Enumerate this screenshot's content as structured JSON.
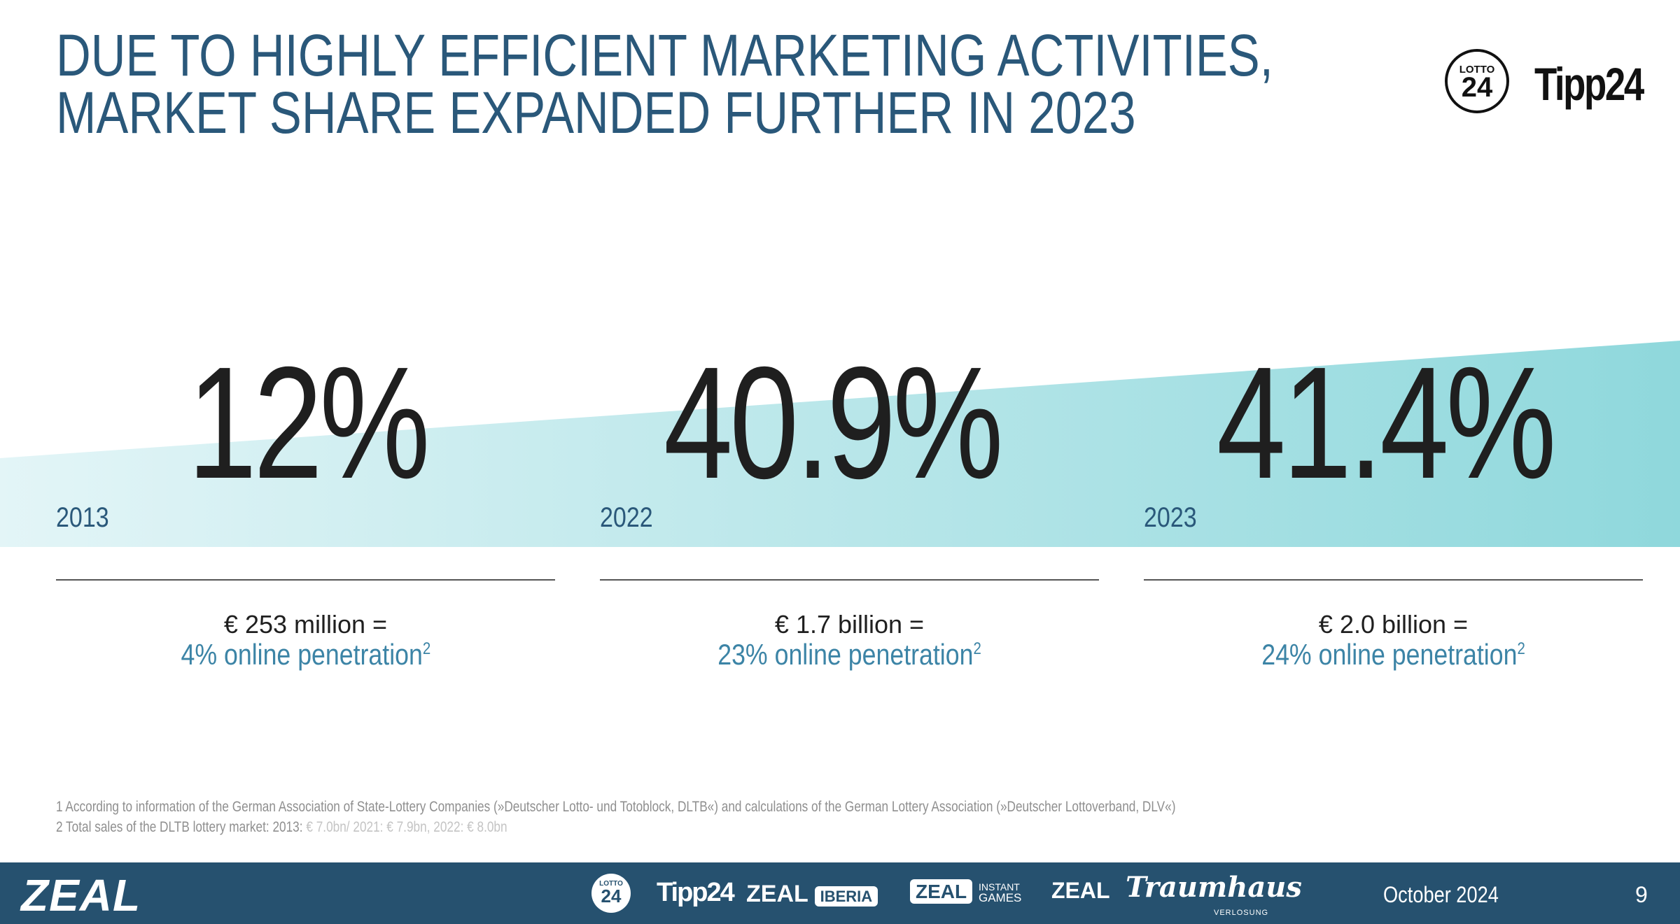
{
  "title": {
    "line1": "DUE TO HIGHLY EFFICIENT MARKETING ACTIVITIES,",
    "line2": "MARKET SHARE EXPANDED FURTHER IN 2023"
  },
  "header_logos": {
    "lotto_small": "LOTTO",
    "lotto_big": "24",
    "tipp": "Tipp24"
  },
  "stats": [
    {
      "year": "2013",
      "share": "12%",
      "amount": "€ 253 million =",
      "penetration": "4% online penetration",
      "sup": "2"
    },
    {
      "year": "2022",
      "share": "40.9%",
      "amount": "€ 1.7 billion =",
      "penetration": "23% online penetration",
      "sup": "2"
    },
    {
      "year": "2023",
      "share": "41.4%",
      "amount": "€ 2.0 billion =",
      "penetration": "24% online penetration",
      "sup": "2"
    }
  ],
  "footnotes": {
    "note1": "1 According to information of the German Association of State-Lottery Companies (»Deutscher Lotto- und Totoblock, DLTB«) and calculations of the German Lottery Association (»Deutscher Lottoverband, DLV«)",
    "note2_prefix": "2 Total sales of the DLTB lottery market: 2013:",
    "note2_values": "€ 7.0bn/ 2021: € 7.9bn, 2022: € 8.0bn"
  },
  "footer": {
    "brand": "ZEAL",
    "lotto_small": "LOTTO",
    "lotto_big": "24",
    "tipp": "Tipp24",
    "zeal_iberia_a": "ZEAL",
    "zeal_iberia_b": "IBERIA",
    "zeal_instant_a": "ZEAL",
    "zeal_instant_b1": "INSTANT",
    "zeal_instant_b2": "GAMES",
    "zeal_plain": "ZEAL",
    "traumhaus": "Traumhaus",
    "traumhaus_sub": "VERLOSUNG",
    "date": "October 2024",
    "page": "9"
  },
  "colors": {
    "title": "#2a587a",
    "band_light": "#e3f5f7",
    "band_dark": "#8fd8dc",
    "penetration": "#3c84a6",
    "footer_bg": "#26516f"
  }
}
